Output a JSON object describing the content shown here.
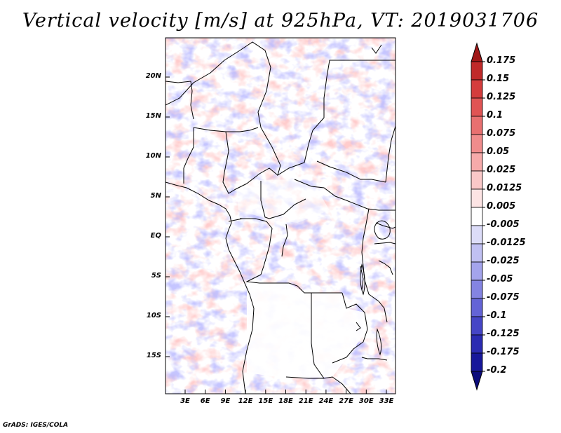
{
  "title": "Vertical velocity [m/s] at 925hPa, VT: 2019031706",
  "footer": "GrADS: IGES/COLA",
  "map": {
    "lat_labels": [
      "20N",
      "15N",
      "10N",
      "5N",
      "EQ",
      "5S",
      "10S",
      "15S"
    ],
    "lon_labels": [
      "3E",
      "6E",
      "9E",
      "12E",
      "15E",
      "18E",
      "21E",
      "24E",
      "27E",
      "30E",
      "33E"
    ],
    "lon_range": [
      0,
      35
    ],
    "lat_range": [
      -20,
      25
    ]
  },
  "colorbar": {
    "labels": [
      "0.175",
      "0.15",
      "0.125",
      "0.1",
      "0.075",
      "0.05",
      "0.025",
      "0.0125",
      "0.005",
      "-0.005",
      "-0.0125",
      "-0.025",
      "-0.05",
      "-0.075",
      "-0.1",
      "-0.125",
      "-0.175",
      "-0.2"
    ],
    "colors": [
      "#a01818",
      "#c02a2a",
      "#d43c3c",
      "#e05454",
      "#e87070",
      "#f08c8c",
      "#f6aaaa",
      "#fac8c8",
      "#fde4e4",
      "#ffffff",
      "#dcdcf8",
      "#c0c0f2",
      "#a4a4ec",
      "#8484e2",
      "#6464d6",
      "#4646c6",
      "#2c2cb2",
      "#18189a",
      "#0c0c7c"
    ]
  }
}
